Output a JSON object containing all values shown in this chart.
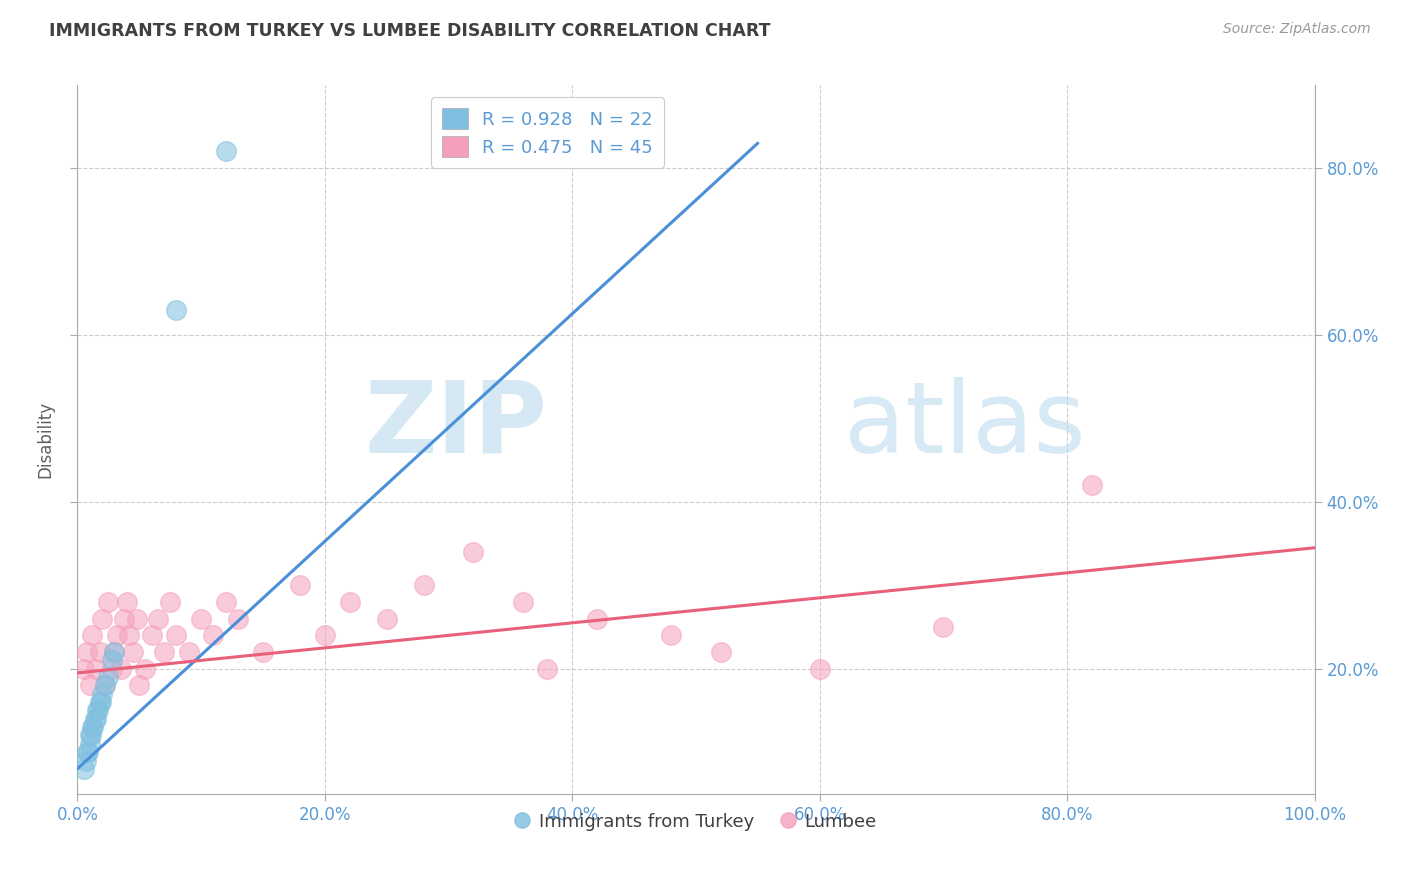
{
  "title": "IMMIGRANTS FROM TURKEY VS LUMBEE DISABILITY CORRELATION CHART",
  "source": "Source: ZipAtlas.com",
  "ylabel": "Disability",
  "xlim": [
    0.0,
    1.0
  ],
  "ylim": [
    0.05,
    0.9
  ],
  "x_ticks": [
    0.0,
    0.2,
    0.4,
    0.6,
    0.8,
    1.0
  ],
  "y_ticks": [
    0.2,
    0.4,
    0.6,
    0.8
  ],
  "x_tick_labels": [
    "0.0%",
    "20.0%",
    "40.0%",
    "60.0%",
    "80.0%",
    "100.0%"
  ],
  "y_tick_labels": [
    "20.0%",
    "40.0%",
    "60.0%",
    "80.0%"
  ],
  "blue_R": 0.928,
  "blue_N": 22,
  "pink_R": 0.475,
  "pink_N": 45,
  "blue_scatter_color": "#7fbfdf",
  "pink_scatter_color": "#f5a0bb",
  "blue_line_color": "#4a90d9",
  "pink_line_color": "#e8607a",
  "grid_color": "#c8c8c8",
  "background_color": "#ffffff",
  "watermark_zip": "ZIP",
  "watermark_atlas": "atlas",
  "legend_label_blue": "Immigrants from Turkey",
  "legend_label_pink": "Lumbee",
  "title_color": "#404040",
  "axis_label_color": "#606060",
  "tick_color": "#5b9bd5",
  "legend_text_color": "#5b9bd5",
  "blue_scatter_x": [
    0.005,
    0.007,
    0.008,
    0.009,
    0.01,
    0.01,
    0.011,
    0.012,
    0.013,
    0.014,
    0.015,
    0.016,
    0.017,
    0.018,
    0.019,
    0.02,
    0.022,
    0.025,
    0.028,
    0.03,
    0.08,
    0.12
  ],
  "blue_scatter_y": [
    0.08,
    0.09,
    0.1,
    0.1,
    0.11,
    0.12,
    0.12,
    0.13,
    0.13,
    0.14,
    0.14,
    0.15,
    0.15,
    0.16,
    0.16,
    0.17,
    0.18,
    0.19,
    0.21,
    0.22,
    0.63,
    0.82
  ],
  "pink_scatter_x": [
    0.005,
    0.008,
    0.01,
    0.012,
    0.015,
    0.018,
    0.02,
    0.022,
    0.025,
    0.028,
    0.03,
    0.032,
    0.035,
    0.038,
    0.04,
    0.042,
    0.045,
    0.048,
    0.05,
    0.055,
    0.06,
    0.065,
    0.07,
    0.075,
    0.08,
    0.09,
    0.1,
    0.11,
    0.12,
    0.13,
    0.15,
    0.18,
    0.2,
    0.22,
    0.25,
    0.28,
    0.32,
    0.36,
    0.38,
    0.42,
    0.48,
    0.52,
    0.6,
    0.7,
    0.82
  ],
  "pink_scatter_y": [
    0.2,
    0.22,
    0.18,
    0.24,
    0.2,
    0.22,
    0.26,
    0.18,
    0.28,
    0.2,
    0.22,
    0.24,
    0.2,
    0.26,
    0.28,
    0.24,
    0.22,
    0.26,
    0.18,
    0.2,
    0.24,
    0.26,
    0.22,
    0.28,
    0.24,
    0.22,
    0.26,
    0.24,
    0.28,
    0.26,
    0.22,
    0.3,
    0.24,
    0.28,
    0.26,
    0.3,
    0.34,
    0.28,
    0.2,
    0.26,
    0.24,
    0.22,
    0.2,
    0.25,
    0.42
  ],
  "blue_line_x0": 0.0,
  "blue_line_y0": 0.08,
  "blue_line_x1": 0.55,
  "blue_line_y1": 0.83,
  "pink_line_x0": 0.0,
  "pink_line_y0": 0.195,
  "pink_line_x1": 1.0,
  "pink_line_y1": 0.345
}
